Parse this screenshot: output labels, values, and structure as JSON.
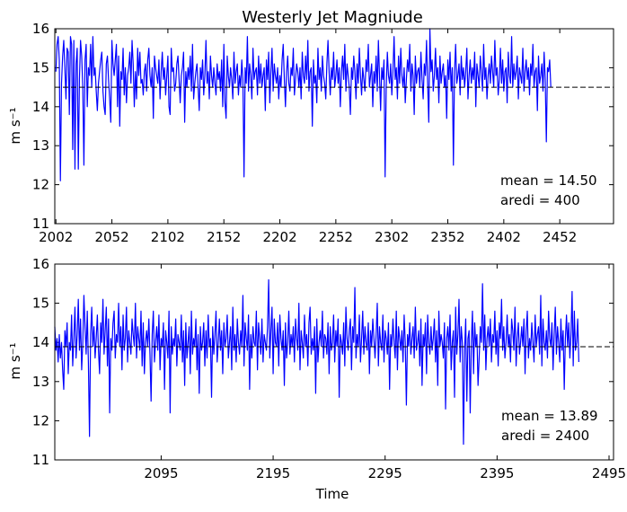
{
  "chart_data": [
    {
      "type": "line",
      "title": "Westerly Jet Magniude",
      "xlabel": "",
      "ylabel": "m s⁻¹",
      "xlim": [
        2001,
        2500
      ],
      "ylim": [
        11,
        16
      ],
      "xticks": [
        2002,
        2052,
        2102,
        2152,
        2202,
        2252,
        2302,
        2352,
        2402,
        2452
      ],
      "yticks": [
        11,
        12,
        13,
        14,
        15,
        16
      ],
      "mean": 14.5,
      "annotation": [
        "mean = 14.50",
        "aredi = 400"
      ],
      "series": [
        {
          "color": "#0000ff",
          "x_start": 2002,
          "x_step": 1,
          "values": [
            14.9,
            15.6,
            15.8,
            15.2,
            12.1,
            14.6,
            15.3,
            15.7,
            15.0,
            14.2,
            15.5,
            15.4,
            13.8,
            15.8,
            15.6,
            12.9,
            15.7,
            12.4,
            15.1,
            15.5,
            12.4,
            14.7,
            15.7,
            15.3,
            14.5,
            12.5,
            15.2,
            15.6,
            14.0,
            15.0,
            14.8,
            15.6,
            14.5,
            15.8,
            14.8,
            15.0,
            14.4,
            13.9,
            14.6,
            14.9,
            15.2,
            15.4,
            14.4,
            14.0,
            13.8,
            15.1,
            15.3,
            14.7,
            14.2,
            13.6,
            15.7,
            15.1,
            14.8,
            15.2,
            15.6,
            14.0,
            15.3,
            13.5,
            14.9,
            14.7,
            15.5,
            14.3,
            15.0,
            14.1,
            14.8,
            15.0,
            15.4,
            14.6,
            15.7,
            15.1,
            14.0,
            14.9,
            14.2,
            15.5,
            14.8,
            15.4,
            14.6,
            14.7,
            14.3,
            14.9,
            15.1,
            14.4,
            15.2,
            15.5,
            14.8,
            14.5,
            15.0,
            13.7,
            15.3,
            15.0,
            14.8,
            14.6,
            15.2,
            14.2,
            14.9,
            15.4,
            14.7,
            15.0,
            14.3,
            14.8,
            15.3,
            14.0,
            13.8,
            15.5,
            14.9,
            15.0,
            14.4,
            14.6,
            15.1,
            15.3,
            14.7,
            14.1,
            14.8,
            15.0,
            15.4,
            13.6,
            14.9,
            14.5,
            15.0,
            14.7,
            15.3,
            14.4,
            15.6,
            14.2,
            14.6,
            14.9,
            15.1,
            14.5,
            13.9,
            15.0,
            14.7,
            15.2,
            14.3,
            14.8,
            15.7,
            14.6,
            14.9,
            14.2,
            15.3,
            14.8,
            14.5,
            15.0,
            14.6,
            14.3,
            15.1,
            14.7,
            14.9,
            14.4,
            15.2,
            14.0,
            15.6,
            14.1,
            13.7,
            15.3,
            14.8,
            14.5,
            15.0,
            14.7,
            14.2,
            15.4,
            14.6,
            14.9,
            15.1,
            14.3,
            14.8,
            14.5,
            15.2,
            14.7,
            12.2,
            15.0,
            14.6,
            15.8,
            14.4,
            15.1,
            14.8,
            14.2,
            15.5,
            14.7,
            14.9,
            15.0,
            14.3,
            15.3,
            14.6,
            15.1,
            14.5,
            14.8,
            15.0,
            13.9,
            15.2,
            14.7,
            15.4,
            14.1,
            14.9,
            15.5,
            14.4,
            15.1,
            14.8,
            14.6,
            15.0,
            14.2,
            14.8,
            14.5,
            15.2,
            15.6,
            14.7,
            14.0,
            14.9,
            15.3,
            14.6,
            14.4,
            15.0,
            14.8,
            15.5,
            14.3,
            14.7,
            15.1,
            14.9,
            14.5,
            15.0,
            14.2,
            15.4,
            14.8,
            14.6,
            15.3,
            14.7,
            15.7,
            14.4,
            14.9,
            15.0,
            13.5,
            15.2,
            14.6,
            14.8,
            14.1,
            15.5,
            14.7,
            15.0,
            14.4,
            15.3,
            14.8,
            14.6,
            14.2,
            15.1,
            15.7,
            14.9,
            14.3,
            15.0,
            14.7,
            15.4,
            14.5,
            14.8,
            15.2,
            14.6,
            15.0,
            14.0,
            14.9,
            15.3,
            14.7,
            15.6,
            14.4,
            15.1,
            14.8,
            14.5,
            13.8,
            15.0,
            14.7,
            15.3,
            14.9,
            14.2,
            15.1,
            14.6,
            15.5,
            14.8,
            14.3,
            15.0,
            14.7,
            14.4,
            15.2,
            14.9,
            15.6,
            14.5,
            14.8,
            15.1,
            14.0,
            14.9,
            14.6,
            15.3,
            14.4,
            15.7,
            14.8,
            13.9,
            15.0,
            14.7,
            15.2,
            12.2,
            14.5,
            15.4,
            14.8,
            14.6,
            15.1,
            14.3,
            14.9,
            15.8,
            14.7,
            15.0,
            14.2,
            15.3,
            14.6,
            15.5,
            14.8,
            14.5,
            15.0,
            14.1,
            14.7,
            15.2,
            14.9,
            15.6,
            14.4,
            15.1,
            14.8,
            13.8,
            15.3,
            14.6,
            14.9,
            15.0,
            14.5,
            15.4,
            14.7,
            14.2,
            15.1,
            14.8,
            15.7,
            14.6,
            13.6,
            16.0,
            14.9,
            15.2,
            14.4,
            14.8,
            15.5,
            14.7,
            15.0,
            14.1,
            15.3,
            14.6,
            14.9,
            15.1,
            14.5,
            14.8,
            13.7,
            15.2,
            14.7,
            15.4,
            14.4,
            15.0,
            12.5,
            14.9,
            15.6,
            14.6,
            14.8,
            15.1,
            14.3,
            15.3,
            14.7,
            15.0,
            14.5,
            14.9,
            15.5,
            14.2,
            14.8,
            15.2,
            14.6,
            15.0,
            14.7,
            15.4,
            14.0,
            15.1,
            14.8,
            14.5,
            15.3,
            14.9,
            14.4,
            15.6,
            14.7,
            15.0,
            14.2,
            14.8,
            15.1,
            14.6,
            15.3,
            14.9,
            14.5,
            15.7,
            14.8,
            15.0,
            14.3,
            14.7,
            15.5,
            14.6,
            15.2,
            14.4,
            14.9,
            15.0,
            14.1,
            15.4,
            14.8,
            14.6,
            15.8,
            14.5,
            15.1,
            14.7,
            14.9,
            15.3,
            14.2,
            15.0,
            14.8,
            14.6,
            15.5,
            14.4,
            14.9,
            15.2,
            14.7,
            15.0,
            14.3,
            15.1,
            14.8,
            15.6,
            14.5,
            14.9,
            15.0,
            13.9,
            15.3,
            14.6,
            14.8,
            15.1,
            14.4,
            15.4,
            14.7,
            13.1,
            15.0,
            14.9,
            15.2,
            14.5
          ]
        }
      ]
    },
    {
      "type": "line",
      "title": "",
      "xlabel": "Time",
      "ylabel": "m s⁻¹",
      "xlim": [
        2000,
        2499
      ],
      "ylim": [
        11,
        16
      ],
      "xticks": [
        2095,
        2195,
        2295,
        2395,
        2495
      ],
      "yticks": [
        11,
        12,
        13,
        14,
        15,
        16
      ],
      "mean": 13.89,
      "annotation": [
        "mean = 13.89",
        "aredi = 2400"
      ],
      "series": [
        {
          "color": "#0000ff",
          "x_start": 2000,
          "x_step": 1,
          "values": [
            14.4,
            13.8,
            14.1,
            13.5,
            14.2,
            13.6,
            14.0,
            13.3,
            12.8,
            14.3,
            13.9,
            14.5,
            13.2,
            14.0,
            13.8,
            14.7,
            13.4,
            14.1,
            14.9,
            13.6,
            14.2,
            15.1,
            13.8,
            14.6,
            13.3,
            14.0,
            15.2,
            14.4,
            13.7,
            14.8,
            13.5,
            11.6,
            14.2,
            14.9,
            13.9,
            14.4,
            13.6,
            14.1,
            14.7,
            13.8,
            13.2,
            14.5,
            14.0,
            15.1,
            13.7,
            14.3,
            14.9,
            13.4,
            14.6,
            12.2,
            14.1,
            13.8,
            14.5,
            14.8,
            13.6,
            14.2,
            14.0,
            15.0,
            13.9,
            14.4,
            13.3,
            14.7,
            13.8,
            14.1,
            14.9,
            13.5,
            14.3,
            14.0,
            13.7,
            14.6,
            14.2,
            13.9,
            15.0,
            13.6,
            14.4,
            14.1,
            13.8,
            14.8,
            13.4,
            14.5,
            13.2,
            14.0,
            14.3,
            13.9,
            14.6,
            13.7,
            12.5,
            14.2,
            14.8,
            13.5,
            14.0,
            14.4,
            13.8,
            14.7,
            13.3,
            14.1,
            13.9,
            14.5,
            12.8,
            14.3,
            14.0,
            13.6,
            14.8,
            12.2,
            14.4,
            13.7,
            14.1,
            13.9,
            14.6,
            13.4,
            14.2,
            14.0,
            13.8,
            14.7,
            13.5,
            14.3,
            12.9,
            14.5,
            13.6,
            14.0,
            14.4,
            13.2,
            14.8,
            13.7,
            14.1,
            13.9,
            14.6,
            13.3,
            14.2,
            12.7,
            14.4,
            13.8,
            14.0,
            14.5,
            13.4,
            14.3,
            13.6,
            14.7,
            13.9,
            14.1,
            12.6,
            14.4,
            13.7,
            14.2,
            14.8,
            13.5,
            14.0,
            14.6,
            13.8,
            14.3,
            13.2,
            14.5,
            13.9,
            14.1,
            14.7,
            13.6,
            14.0,
            14.4,
            13.3,
            14.9,
            13.8,
            14.2,
            13.5,
            14.6,
            14.0,
            13.7,
            14.3,
            13.9,
            15.2,
            13.4,
            14.5,
            14.1,
            13.8,
            14.7,
            12.8,
            14.2,
            13.6,
            14.4,
            14.0,
            13.9,
            14.8,
            13.3,
            14.5,
            14.1,
            13.7,
            14.6,
            13.5,
            14.2,
            14.0,
            13.8,
            14.4,
            15.6,
            13.6,
            14.3,
            14.9,
            13.2,
            14.6,
            14.0,
            13.9,
            14.5,
            13.4,
            14.7,
            14.1,
            13.8,
            14.3,
            12.9,
            14.5,
            13.6,
            14.0,
            14.8,
            13.7,
            14.2,
            13.9,
            14.4,
            13.5,
            14.6,
            14.1,
            13.8,
            15.0,
            13.3,
            14.3,
            14.0,
            13.6,
            14.7,
            13.9,
            14.2,
            13.4,
            14.5,
            14.9,
            13.7,
            14.1,
            13.8,
            14.4,
            12.7,
            14.6,
            13.5,
            14.0,
            14.3,
            13.9,
            14.8,
            13.6,
            14.2,
            14.1,
            13.7,
            14.5,
            13.2,
            14.4,
            13.8,
            14.0,
            14.7,
            13.5,
            14.3,
            13.9,
            14.6,
            12.6,
            14.2,
            14.0,
            13.7,
            14.5,
            13.4,
            14.9,
            14.1,
            13.8,
            14.3,
            14.6,
            13.3,
            14.4,
            14.0,
            15.4,
            13.6,
            14.2,
            13.9,
            14.7,
            13.5,
            14.1,
            14.8,
            13.7,
            14.4,
            14.0,
            13.8,
            14.5,
            13.2,
            14.3,
            13.9,
            14.6,
            14.1,
            13.6,
            14.2,
            15.0,
            13.4,
            14.4,
            14.0,
            13.8,
            14.7,
            13.5,
            14.3,
            14.1,
            13.7,
            14.5,
            12.8,
            14.2,
            13.9,
            14.6,
            14.0,
            13.6,
            14.8,
            13.3,
            14.4,
            14.1,
            13.8,
            14.3,
            13.5,
            14.7,
            14.0,
            12.4,
            14.2,
            13.9,
            14.5,
            13.7,
            14.1,
            14.4,
            13.6,
            14.9,
            13.8,
            14.0,
            14.3,
            13.4,
            14.6,
            12.9,
            14.2,
            13.9,
            14.5,
            13.2,
            14.7,
            14.0,
            13.7,
            14.4,
            13.8,
            14.1,
            14.6,
            13.5,
            14.3,
            12.9,
            14.8,
            13.9,
            14.2,
            14.0,
            13.6,
            14.5,
            12.3,
            14.1,
            14.4,
            13.8,
            14.7,
            13.3,
            14.0,
            14.3,
            12.6,
            14.9,
            13.7,
            14.2,
            15.1,
            13.5,
            14.4,
            14.0,
            11.4,
            13.8,
            14.6,
            12.5,
            14.1,
            14.3,
            12.2,
            14.0,
            14.8,
            13.2,
            14.5,
            13.9,
            14.2,
            12.9,
            13.6,
            14.4,
            14.0,
            15.5,
            13.8,
            14.7,
            13.3,
            14.1,
            14.4,
            13.9,
            14.6,
            13.5,
            14.2,
            14.0,
            14.8,
            13.7,
            14.3,
            13.4,
            14.5,
            14.1,
            15.1,
            13.8,
            14.4,
            13.6,
            14.0,
            14.7,
            13.9,
            14.2,
            13.5,
            14.6,
            14.3,
            13.8,
            14.9,
            13.4,
            14.1,
            14.5,
            13.7,
            14.0,
            14.4,
            13.9,
            14.6,
            13.2,
            14.3,
            14.8,
            13.6,
            14.1,
            13.8,
            14.5,
            14.0,
            13.5,
            14.7,
            13.9,
            14.2,
            14.4,
            13.7,
            15.2,
            13.4,
            14.6,
            14.0,
            13.8,
            14.3,
            13.6,
            14.8,
            14.1,
            13.9,
            14.5,
            13.3,
            14.2,
            14.9,
            13.7,
            14.4,
            14.0,
            13.5,
            14.6,
            13.8,
            14.3,
            12.8,
            14.1,
            14.7,
            13.9,
            14.5,
            13.6,
            14.2,
            15.3,
            13.4,
            14.8,
            13.8,
            14.0,
            14.6,
            13.5
          ]
        }
      ]
    }
  ]
}
